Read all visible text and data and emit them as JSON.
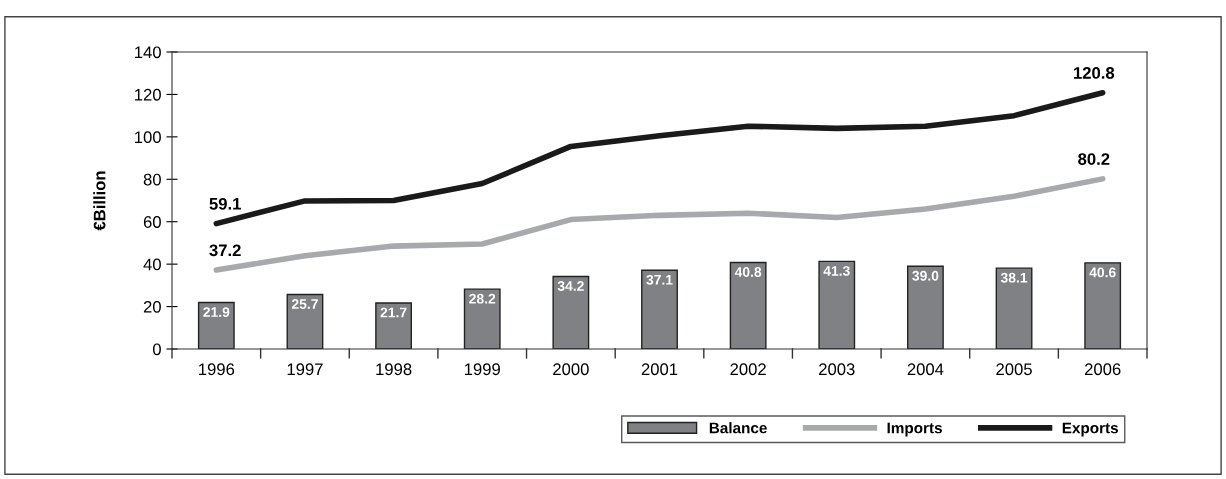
{
  "chart_data": {
    "type": "bar",
    "ylabel": "€Billion",
    "categories": [
      "1996",
      "1997",
      "1998",
      "1999",
      "2000",
      "2001",
      "2002",
      "2003",
      "2004",
      "2005",
      "2006"
    ],
    "series": [
      {
        "name": "Balance",
        "color": "#808184",
        "values": [
          21.9,
          25.7,
          21.7,
          28.2,
          34.2,
          37.1,
          40.8,
          41.3,
          39.0,
          38.1,
          40.6
        ],
        "value_labels": [
          "21.9",
          "25.7",
          "21.7",
          "28.2",
          "34.2",
          "37.1",
          "40.8",
          "41.3",
          "39.0",
          "38.1",
          "40.6"
        ]
      },
      {
        "name": "Imports",
        "type": "line",
        "color": "#a7a9ac",
        "values": [
          37.2,
          44,
          48.5,
          49.5,
          61,
          63,
          64,
          62,
          66,
          72,
          80.2
        ],
        "value_labels": [
          "37.2",
          null,
          null,
          null,
          null,
          null,
          null,
          null,
          null,
          null,
          "80.2"
        ]
      },
      {
        "name": "Exports",
        "type": "line",
        "color": "#1a1a1a",
        "values": [
          59.1,
          69.8,
          70,
          78,
          95.5,
          100.5,
          105,
          104,
          105,
          110,
          120.8
        ],
        "value_labels": [
          "59.1",
          null,
          null,
          null,
          null,
          null,
          null,
          null,
          null,
          null,
          "120.8"
        ]
      }
    ],
    "ylim": [
      0,
      140
    ],
    "yticks": [
      0,
      20,
      40,
      60,
      80,
      100,
      120,
      140
    ],
    "grid": false,
    "legend": "bottom right"
  }
}
